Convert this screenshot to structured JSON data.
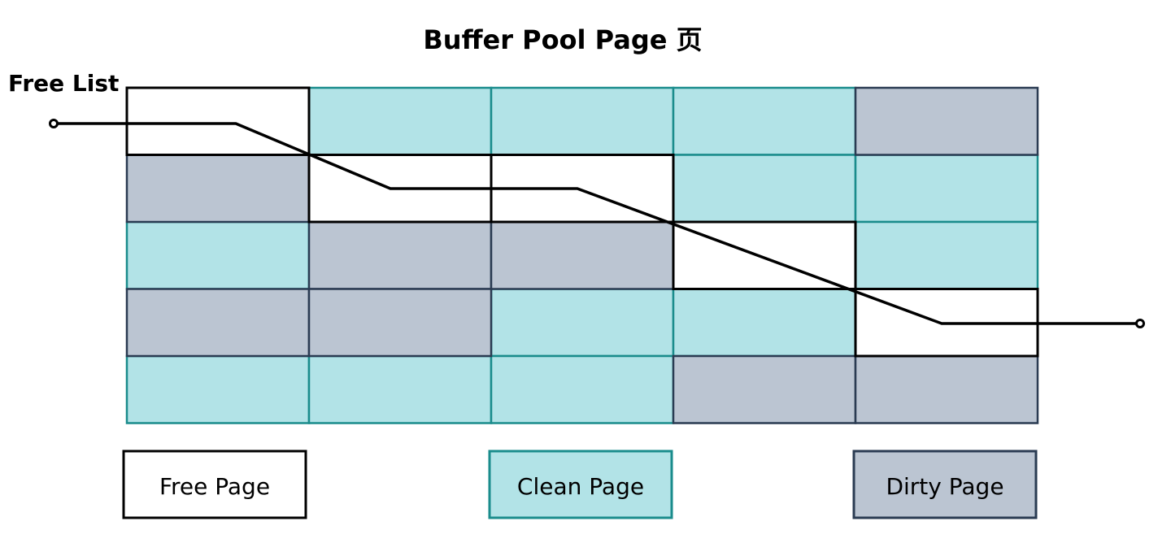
{
  "title": "Buffer Pool Page 页",
  "free_list_label": "Free List",
  "grid": {
    "rows": [
      [
        "free",
        "clean",
        "clean",
        "clean",
        "dirty"
      ],
      [
        "dirty",
        "free",
        "free",
        "clean",
        "clean"
      ],
      [
        "clean",
        "dirty",
        "dirty",
        "free",
        "clean"
      ],
      [
        "dirty",
        "dirty",
        "clean",
        "clean",
        "free"
      ],
      [
        "clean",
        "clean",
        "clean",
        "dirty",
        "dirty"
      ]
    ]
  },
  "legend": {
    "free": "Free Page",
    "clean": "Clean Page",
    "dirty": "Dirty Page"
  },
  "colors": {
    "free_fill": "#ffffff",
    "free_stroke": "#000000",
    "clean_fill": "#b2e3e7",
    "clean_stroke": "#1a8c8c",
    "dirty_fill": "#bbc5d2",
    "dirty_stroke": "#2a3b52",
    "line": "#000000"
  }
}
